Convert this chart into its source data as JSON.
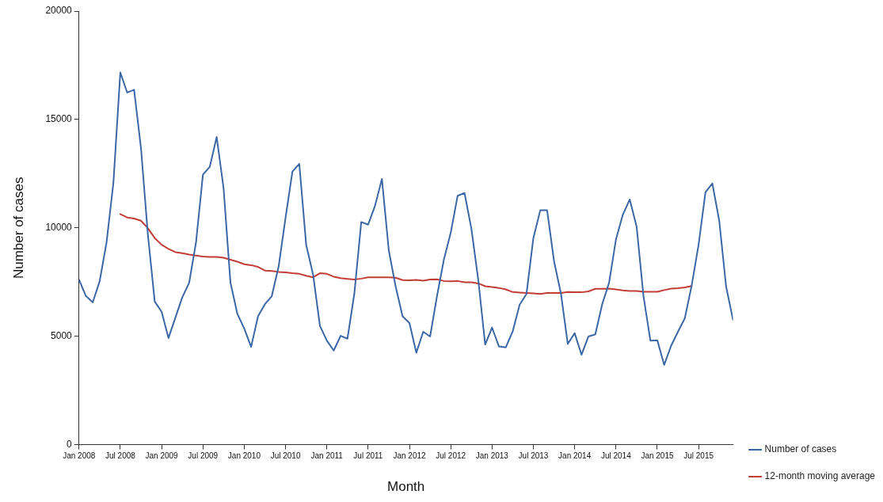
{
  "chart_data": {
    "type": "line",
    "xlabel": "Month",
    "ylabel": "Number of cases",
    "x": [
      "2008-01",
      "2008-02",
      "2008-03",
      "2008-04",
      "2008-05",
      "2008-06",
      "2008-07",
      "2008-08",
      "2008-09",
      "2008-10",
      "2008-11",
      "2008-12",
      "2009-01",
      "2009-02",
      "2009-03",
      "2009-04",
      "2009-05",
      "2009-06",
      "2009-07",
      "2009-08",
      "2009-09",
      "2009-10",
      "2009-11",
      "2009-12",
      "2010-01",
      "2010-02",
      "2010-03",
      "2010-04",
      "2010-05",
      "2010-06",
      "2010-07",
      "2010-08",
      "2010-09",
      "2010-10",
      "2010-11",
      "2010-12",
      "2011-01",
      "2011-02",
      "2011-03",
      "2011-04",
      "2011-05",
      "2011-06",
      "2011-07",
      "2011-08",
      "2011-09",
      "2011-10",
      "2011-11",
      "2011-12",
      "2012-01",
      "2012-02",
      "2012-03",
      "2012-04",
      "2012-05",
      "2012-06",
      "2012-07",
      "2012-08",
      "2012-09",
      "2012-10",
      "2012-11",
      "2012-12",
      "2013-01",
      "2013-02",
      "2013-03",
      "2013-04",
      "2013-05",
      "2013-06",
      "2013-07",
      "2013-08",
      "2013-09",
      "2013-10",
      "2013-11",
      "2013-12",
      "2014-01",
      "2014-02",
      "2014-03",
      "2014-04",
      "2014-05",
      "2014-06",
      "2014-07",
      "2014-08",
      "2014-09",
      "2014-10",
      "2014-11",
      "2014-12",
      "2015-01",
      "2015-02",
      "2015-03",
      "2015-04",
      "2015-05",
      "2015-06",
      "2015-07",
      "2015-08",
      "2015-09",
      "2015-10",
      "2015-11",
      "2015-12"
    ],
    "series": [
      {
        "name": "Number of cases",
        "color": "#3b67a6",
        "values": [
          7610,
          6860,
          6570,
          7540,
          9330,
          12090,
          17170,
          16240,
          16370,
          13690,
          9710,
          6600,
          6130,
          4920,
          5860,
          6790,
          7470,
          9340,
          12450,
          12820,
          14190,
          11830,
          7470,
          6040,
          5360,
          4510,
          5920,
          6480,
          6850,
          8220,
          10460,
          12600,
          12950,
          9220,
          7850,
          5480,
          4800,
          4340,
          5020,
          4890,
          6980,
          10270,
          10150,
          11020,
          12260,
          8960,
          7290,
          5920,
          5610,
          4240,
          5210,
          4990,
          6850,
          8530,
          9780,
          11480,
          11610,
          9960,
          7600,
          4620,
          5400,
          4530,
          4490,
          5230,
          6450,
          6950,
          9530,
          10810,
          10810,
          8470,
          6980,
          4650,
          5140,
          4150,
          4990,
          5090,
          6480,
          7470,
          9470,
          10610,
          11310,
          10060,
          6850,
          4800,
          4820,
          3680,
          4550,
          5210,
          5830,
          7350,
          9220,
          11640,
          12050,
          10330,
          7290,
          5760
        ]
      },
      {
        "name": "12-month moving average",
        "color": "#c33d37",
        "values": [
          null,
          null,
          null,
          null,
          null,
          null,
          10640,
          10480,
          10430,
          10330,
          9990,
          9530,
          9220,
          9030,
          8880,
          8830,
          8770,
          8720,
          8680,
          8660,
          8660,
          8620,
          8530,
          8440,
          8320,
          8280,
          8200,
          8030,
          8010,
          7970,
          7950,
          7910,
          7880,
          7790,
          7720,
          7910,
          7880,
          7750,
          7680,
          7650,
          7620,
          7660,
          7720,
          7720,
          7720,
          7720,
          7700,
          7590,
          7580,
          7600,
          7560,
          7620,
          7630,
          7550,
          7540,
          7550,
          7490,
          7490,
          7440,
          7310,
          7270,
          7230,
          7160,
          7040,
          7020,
          7000,
          6980,
          6950,
          7000,
          7000,
          7000,
          7040,
          7030,
          7030,
          7070,
          7190,
          7190,
          7200,
          7160,
          7120,
          7090,
          7090,
          7050,
          7050,
          7050,
          7130,
          7200,
          7220,
          7250,
          7320,
          null,
          null,
          null,
          null,
          null,
          null
        ]
      }
    ],
    "xlim": [
      "2008-01",
      "2015-12"
    ],
    "xticks": [
      {
        "value": "2008-01",
        "label": "Jan 2008"
      },
      {
        "value": "2008-07",
        "label": "Jul 2008"
      },
      {
        "value": "2009-01",
        "label": "Jan 2009"
      },
      {
        "value": "2009-07",
        "label": "Jul 2009"
      },
      {
        "value": "2010-01",
        "label": "Jan 2010"
      },
      {
        "value": "2010-07",
        "label": "Jul 2010"
      },
      {
        "value": "2011-01",
        "label": "Jan 2011"
      },
      {
        "value": "2011-07",
        "label": "Jul 2011"
      },
      {
        "value": "2012-01",
        "label": "Jan 2012"
      },
      {
        "value": "2012-07",
        "label": "Jul 2012"
      },
      {
        "value": "2013-01",
        "label": "Jan 2013"
      },
      {
        "value": "2013-07",
        "label": "Jul 2013"
      },
      {
        "value": "2014-01",
        "label": "Jan 2014"
      },
      {
        "value": "2014-07",
        "label": "Jul 2014"
      },
      {
        "value": "2015-01",
        "label": "Jan 2015"
      },
      {
        "value": "2015-07",
        "label": "Jul 2015"
      }
    ],
    "ylim": [
      0,
      20000
    ],
    "yticks": [
      0,
      5000,
      10000,
      15000,
      20000
    ],
    "grid": false,
    "legend": "bottom right",
    "marker": "none",
    "line_style": "solid"
  }
}
